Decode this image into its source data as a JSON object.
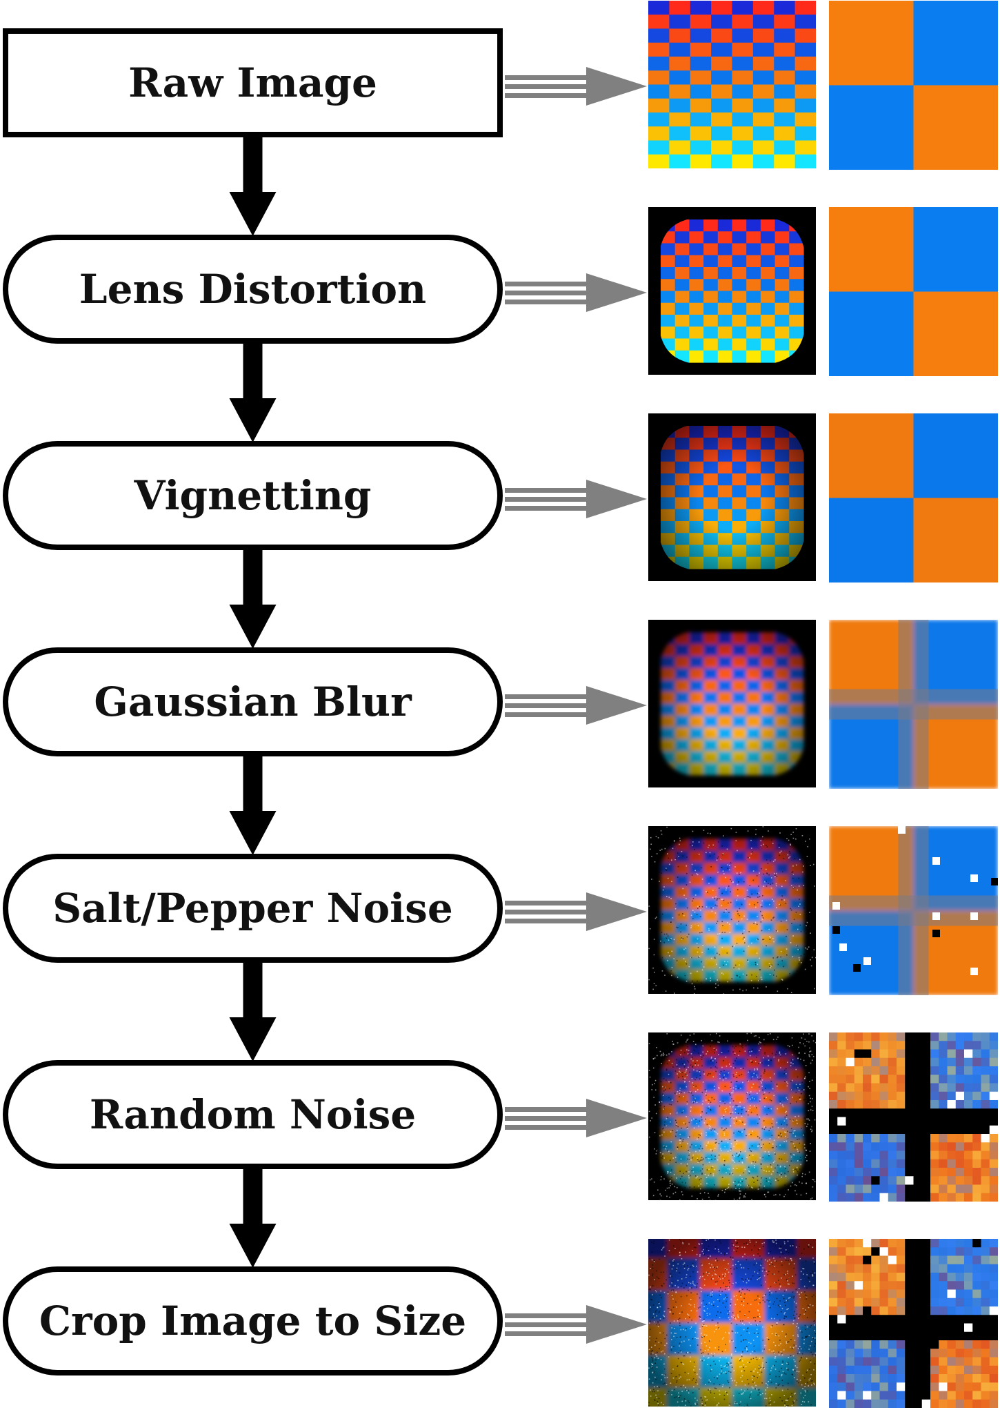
{
  "steps": [
    {
      "label": "Raw Image",
      "shape": "rectangle"
    },
    {
      "label": "Lens Distortion",
      "shape": "rounded"
    },
    {
      "label": "Vignetting",
      "shape": "rounded"
    },
    {
      "label": "Gaussian Blur",
      "shape": "rounded"
    },
    {
      "label": "Salt/Pepper Noise",
      "shape": "rounded"
    },
    {
      "label": "Random Noise",
      "shape": "rounded"
    },
    {
      "label": "Crop Image to Size",
      "shape": "rounded"
    }
  ],
  "colors": {
    "stroke": "#000000",
    "arrow_side": "#808080",
    "orange": "#f57e0e",
    "blue": "#0a7df0",
    "red": "#ff2a1a",
    "dark_blue": "#1a2ad8",
    "yellow": "#ffe800",
    "cyan": "#14e6ff",
    "background_dark": "#000000"
  },
  "thumbnails": [
    {
      "name": "raw",
      "effects": []
    },
    {
      "name": "lens-distortion",
      "effects": [
        "distort"
      ]
    },
    {
      "name": "vignetting",
      "effects": [
        "distort",
        "vignette"
      ]
    },
    {
      "name": "gaussian-blur",
      "effects": [
        "distort",
        "vignette",
        "blur"
      ]
    },
    {
      "name": "salt-pepper-noise",
      "effects": [
        "distort",
        "vignette",
        "blur",
        "saltpepper"
      ]
    },
    {
      "name": "random-noise",
      "effects": [
        "distort",
        "vignette",
        "blur",
        "saltpepper",
        "noise"
      ]
    },
    {
      "name": "crop-to-size",
      "effects": [
        "crop",
        "vignette",
        "blur",
        "saltpepper",
        "noise"
      ]
    }
  ]
}
